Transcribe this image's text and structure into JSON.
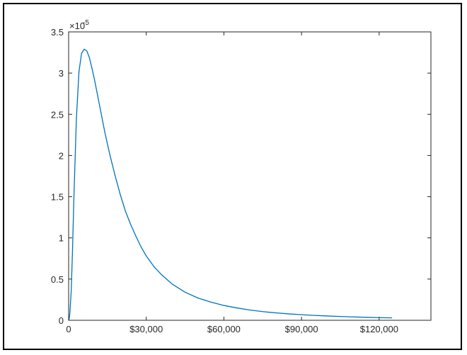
{
  "chart_data": {
    "type": "line",
    "title": "",
    "xlabel": "",
    "ylabel": "",
    "xlim": [
      0,
      140000
    ],
    "ylim": [
      0,
      3.5e-05
    ],
    "x_ticks": [
      0,
      30000,
      60000,
      90000,
      120000
    ],
    "x_tick_labels": [
      "0",
      "$30,000",
      "$60,000",
      "$90,000",
      "$120,000"
    ],
    "y_ticks": [
      0,
      0.5,
      1,
      1.5,
      2,
      2.5,
      3,
      3.5
    ],
    "y_tick_labels": [
      "0",
      "0.5",
      "1",
      "1.5",
      "2",
      "2.5",
      "3",
      "3.5"
    ],
    "y_exponent": {
      "base": "×10",
      "power": "-5"
    },
    "grid": false,
    "box": true,
    "series": [
      {
        "color": "#0072BD",
        "x": [
          0,
          250,
          500,
          1000,
          1500,
          2000,
          3000,
          4000,
          5000,
          6000,
          7000,
          8000,
          9000,
          10000,
          12000,
          14000,
          16000,
          18000,
          20000,
          22000,
          24000,
          26000,
          28000,
          30000,
          33000,
          36000,
          40000,
          45000,
          50000,
          55000,
          60000,
          65000,
          70000,
          75000,
          80000,
          85000,
          90000,
          95000,
          100000,
          105000,
          110000,
          115000,
          120000,
          125000
        ],
        "y": [
          0,
          2.5e-07,
          9.5e-07,
          3.6e-06,
          8.5e-06,
          1.45e-05,
          2.45e-05,
          3.02e-05,
          3.24e-05,
          3.29e-05,
          3.27e-05,
          3.19e-05,
          3.06e-05,
          2.92e-05,
          2.6e-05,
          2.28e-05,
          2e-05,
          1.75e-05,
          1.52e-05,
          1.32e-05,
          1.16e-05,
          1.02e-05,
          8.9e-06,
          7.8e-06,
          6.5e-06,
          5.5e-06,
          4.4e-06,
          3.4e-06,
          2.7e-06,
          2.2e-06,
          1.8e-06,
          1.5e-06,
          1.25e-06,
          1.05e-06,
          9e-07,
          7.8e-07,
          6.8e-07,
          5.9e-07,
          5.2e-07,
          4.6e-07,
          4.1e-07,
          3.6e-07,
          3.2e-07,
          2.9e-07
        ]
      }
    ]
  }
}
